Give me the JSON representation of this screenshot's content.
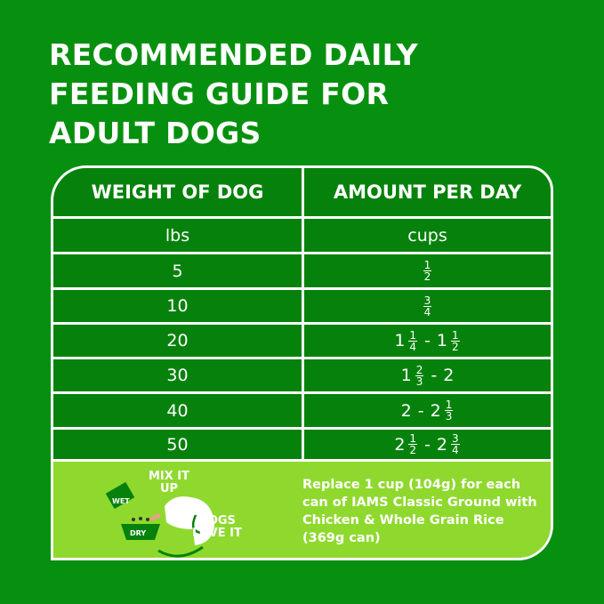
{
  "title_lines": [
    "RECOMMENDED DAILY",
    "FEEDING GUIDE FOR",
    "ADULT DOGS"
  ],
  "table": {
    "headers": [
      "WEIGHT OF DOG",
      "AMOUNT PER DAY"
    ],
    "units": [
      "lbs",
      "cups"
    ],
    "rows": [
      {
        "weight": "5",
        "amount": [
          {
            "whole": "",
            "num": "1",
            "den": "2"
          }
        ]
      },
      {
        "weight": "10",
        "amount": [
          {
            "whole": "",
            "num": "3",
            "den": "4"
          }
        ]
      },
      {
        "weight": "20",
        "amount": [
          {
            "whole": "1",
            "num": "1",
            "den": "4"
          },
          {
            "whole": "1",
            "num": "1",
            "den": "2"
          }
        ]
      },
      {
        "weight": "30",
        "amount": [
          {
            "whole": "1",
            "num": "2",
            "den": "3"
          },
          {
            "whole": "2",
            "num": "",
            "den": ""
          }
        ]
      },
      {
        "weight": "40",
        "amount": [
          {
            "whole": "2",
            "num": "",
            "den": ""
          },
          {
            "whole": "2",
            "num": "1",
            "den": "3"
          }
        ]
      },
      {
        "weight": "50",
        "amount": [
          {
            "whole": "2",
            "num": "1",
            "den": "2"
          },
          {
            "whole": "2",
            "num": "3",
            "den": "4"
          }
        ]
      }
    ]
  },
  "note": {
    "graphic": {
      "mix_label": "MIX IT UP",
      "wet_label": "WET",
      "dry_label": "DRY",
      "love_label": "DOGS LOVE IT"
    },
    "text": "Replace 1 cup (104g) for each can of IAMS Classic Ground with Chicken & Whole Grain Rice (369g can)"
  },
  "colors": {
    "background": "#07900f",
    "table": "#06820c",
    "note": "#8fd92f",
    "text": "#ffffff"
  }
}
